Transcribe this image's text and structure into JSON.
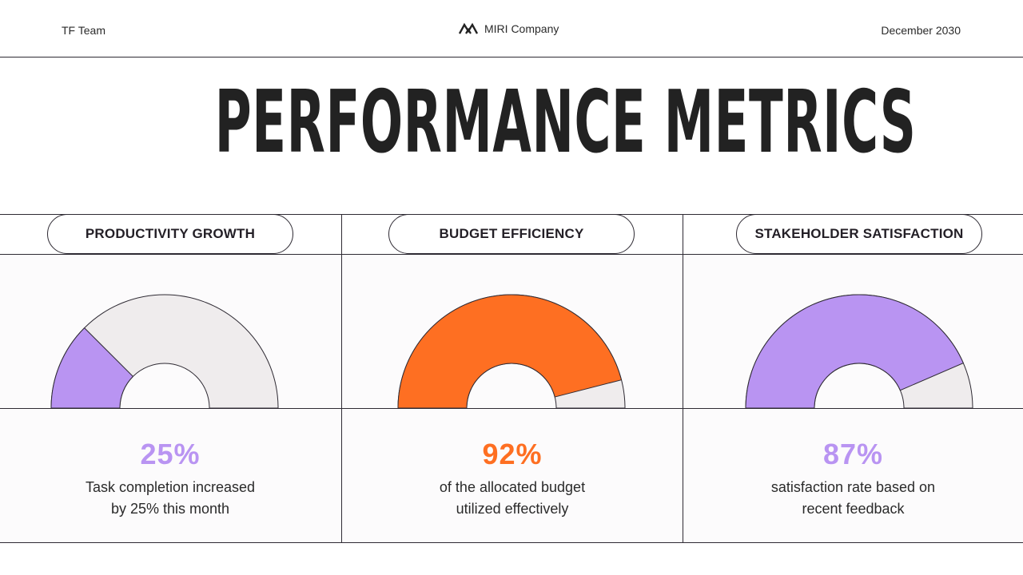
{
  "header": {
    "team": "TF Team",
    "company": "MIRI Company",
    "date": "December 2030",
    "logo_icon": "miri-mountain-logo-icon"
  },
  "title": "PERFORMANCE METRICS",
  "colors": {
    "purple": "#b994f2",
    "orange": "#fe6f22",
    "track": "#efeced",
    "stroke": "#2e2a33"
  },
  "metrics": [
    {
      "label": "PRODUCTIVITY GROWTH",
      "value_text": "25%",
      "desc_line1": "Task completion increased",
      "desc_line2": "by 25% this month",
      "color": "#b994f2"
    },
    {
      "label": "BUDGET EFFICIENCY",
      "value_text": "92%",
      "desc_line1": "of the allocated budget",
      "desc_line2": "utilized effectively",
      "color": "#fe6f22"
    },
    {
      "label": "STAKEHOLDER SATISFACTION",
      "value_text": "87%",
      "desc_line1": "satisfaction rate based on",
      "desc_line2": "recent feedback",
      "color": "#b994f2"
    }
  ],
  "chart_data": {
    "type": "gauge",
    "title": "PERFORMANCE METRICS",
    "categories": [
      "PRODUCTIVITY GROWTH",
      "BUDGET EFFICIENCY",
      "STAKEHOLDER SATISFACTION"
    ],
    "values": [
      25,
      92,
      87
    ],
    "unit": "%",
    "ylim": [
      0,
      100
    ]
  }
}
